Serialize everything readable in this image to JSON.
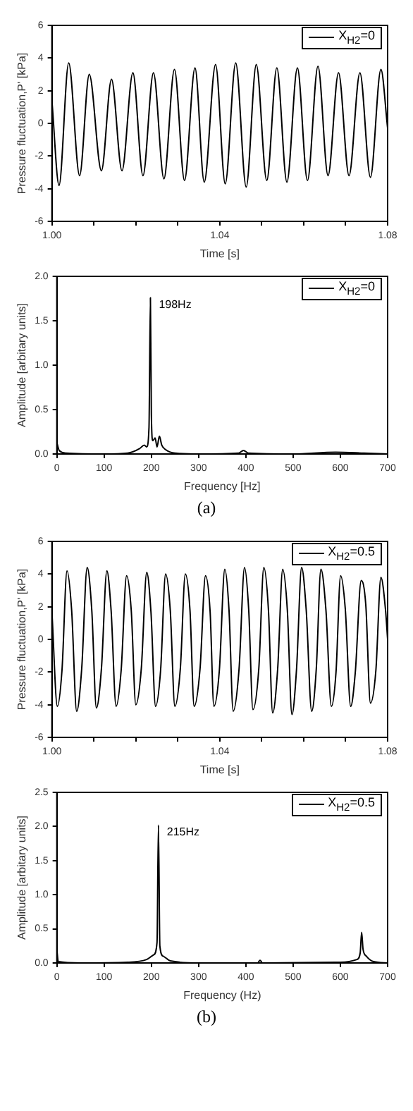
{
  "chart_data": [
    {
      "type": "line",
      "xlabel": "Time [s]",
      "ylabel": "Pressure fluctuation,P' [kPa]",
      "legend": "top right",
      "marker": "none",
      "line_style": "solid",
      "xlim": [
        1.0,
        1.08
      ],
      "xticks": [
        {
          "value": 1.0,
          "label": "1.00"
        },
        {
          "value": 1.01,
          "label": null
        },
        {
          "value": 1.02,
          "label": null
        },
        {
          "value": 1.03,
          "label": null
        },
        {
          "value": 1.04,
          "label": "1.04"
        },
        {
          "value": 1.05,
          "label": null
        },
        {
          "value": 1.06,
          "label": null
        },
        {
          "value": 1.07,
          "label": null
        },
        {
          "value": 1.08,
          "label": "1.08"
        }
      ],
      "ylim": [
        -6,
        6
      ],
      "yticks": [
        -6,
        -4,
        -2,
        0,
        2,
        4,
        6
      ],
      "x": [
        1.0,
        1.0017,
        1.004,
        1.0066,
        1.0089,
        1.0118,
        1.0142,
        1.0167,
        1.0193,
        1.0217,
        1.0242,
        1.0267,
        1.0292,
        1.0316,
        1.0341,
        1.0363,
        1.039,
        1.0413,
        1.0438,
        1.0463,
        1.0487,
        1.0512,
        1.0536,
        1.056,
        1.0585,
        1.0609,
        1.0634,
        1.0658,
        1.0683,
        1.0708,
        1.0734,
        1.0759,
        1.0784,
        1.08
      ],
      "series": [
        {
          "name": "X$_{H2}$=0",
          "color": "#000000",
          "values": [
            1.4,
            -3.8,
            3.7,
            -3.2,
            3.0,
            -2.9,
            2.7,
            -2.9,
            3.1,
            -3.2,
            3.1,
            -3.4,
            3.3,
            -3.5,
            3.4,
            -3.6,
            3.6,
            -3.7,
            3.7,
            -3.9,
            3.6,
            -3.5,
            3.4,
            -3.6,
            3.4,
            -3.5,
            3.5,
            -3.2,
            3.1,
            -3.2,
            3.1,
            -3.3,
            3.3,
            -0.3
          ]
        }
      ]
    },
    {
      "type": "line",
      "xlabel": "Frequency [Hz]",
      "ylabel": "Amplitude [arbitary units]",
      "legend": "top right",
      "marker": "none",
      "line_style": "solid",
      "xlim": [
        0,
        700
      ],
      "xticks": [
        0,
        100,
        200,
        300,
        400,
        500,
        600,
        700
      ],
      "ylim": [
        0,
        2.0
      ],
      "yticks": [
        {
          "value": 0,
          "label": "0.0"
        },
        {
          "value": 0.5,
          "label": "0.5"
        },
        {
          "value": 1.0,
          "label": "1.0"
        },
        {
          "value": 1.5,
          "label": "1.5"
        },
        {
          "value": 2.0,
          "label": "2.0"
        }
      ],
      "x": [
        0,
        5,
        20,
        100,
        150,
        175,
        185,
        190,
        195,
        198,
        200,
        203,
        208,
        212,
        217,
        222,
        230,
        250,
        300,
        385,
        395,
        405,
        500,
        590,
        650,
        700
      ],
      "series": [
        {
          "name": "X$_{H2}$=0",
          "color": "#000000",
          "values": [
            0.13,
            0.04,
            0.01,
            0.0,
            0.01,
            0.06,
            0.1,
            0.08,
            0.3,
            1.76,
            0.45,
            0.15,
            0.18,
            0.08,
            0.2,
            0.1,
            0.05,
            0.01,
            0.0,
            0.01,
            0.04,
            0.01,
            0.0,
            0.02,
            0.01,
            0.0
          ]
        }
      ],
      "annotations": [
        {
          "text": "198Hz",
          "x": 198,
          "y": 1.76
        },
        "(a)"
      ]
    },
    {
      "type": "line",
      "xlabel": "Time [s]",
      "ylabel": "Pressure fluctuation,P' [kPa]",
      "legend": "top right",
      "marker": "none",
      "line_style": "solid",
      "xlim": [
        1.0,
        1.08
      ],
      "xticks": [
        {
          "value": 1.0,
          "label": "1.00"
        },
        {
          "value": 1.01,
          "label": null
        },
        {
          "value": 1.02,
          "label": null
        },
        {
          "value": 1.03,
          "label": null
        },
        {
          "value": 1.04,
          "label": "1.04"
        },
        {
          "value": 1.05,
          "label": null
        },
        {
          "value": 1.06,
          "label": null
        },
        {
          "value": 1.07,
          "label": null
        },
        {
          "value": 1.08,
          "label": "1.08"
        }
      ],
      "ylim": [
        -6,
        6
      ],
      "yticks": [
        -6,
        -4,
        -2,
        0,
        2,
        4,
        6
      ],
      "x": [
        1.0,
        1.0013,
        1.0024,
        1.0036,
        1.0047,
        1.0059,
        1.0071,
        1.0084,
        1.0095,
        1.0106,
        1.0118,
        1.0131,
        1.0141,
        1.0153,
        1.0165,
        1.0178,
        1.0189,
        1.02,
        1.0213,
        1.0226,
        1.0236,
        1.0247,
        1.0259,
        1.0271,
        1.0282,
        1.0293,
        1.0306,
        1.0318,
        1.0329,
        1.0339,
        1.0353,
        1.0366,
        1.0377,
        1.0386,
        1.0399,
        1.0412,
        1.0422,
        1.0432,
        1.0446,
        1.0459,
        1.0469,
        1.0479,
        1.0493,
        1.0505,
        1.0516,
        1.0526,
        1.0538,
        1.055,
        1.0561,
        1.0572,
        1.0583,
        1.0595,
        1.0606,
        1.0619,
        1.063,
        1.0641,
        1.0653,
        1.0666,
        1.0677,
        1.0688,
        1.0699,
        1.0712,
        1.0723,
        1.0737,
        1.0748,
        1.0759,
        1.0772,
        1.0784,
        1.0795,
        1.08
      ],
      "series": [
        {
          "name": "X$_{H2}$=0.5",
          "color": "#000000",
          "values": [
            1.7,
            -4.1,
            -1.9,
            4.2,
            1.8,
            -4.4,
            -1.8,
            4.4,
            1.8,
            -4.2,
            -1.8,
            4.2,
            1.8,
            -4.1,
            -1.9,
            3.9,
            1.8,
            -4.0,
            -1.8,
            4.1,
            1.7,
            -4.1,
            -1.9,
            4.0,
            1.8,
            -4.1,
            -1.8,
            4.0,
            1.8,
            -4.1,
            -1.8,
            3.9,
            1.7,
            -4.1,
            -1.9,
            4.3,
            1.8,
            -4.4,
            -1.8,
            4.4,
            1.8,
            -4.3,
            -1.8,
            4.4,
            1.8,
            -4.5,
            -1.8,
            4.3,
            1.8,
            -4.6,
            -1.8,
            4.4,
            1.8,
            -4.4,
            -1.8,
            4.3,
            1.8,
            -4.1,
            -2.0,
            3.9,
            1.9,
            -4.1,
            -2.0,
            3.6,
            2.1,
            -3.9,
            -1.9,
            3.8,
            1.8,
            0.0
          ]
        }
      ]
    },
    {
      "type": "line",
      "xlabel": "Frequency (Hz)",
      "ylabel": "Amplitude [arbitary units]",
      "legend": "top right",
      "marker": "none",
      "line_style": "solid",
      "xlim": [
        0,
        700
      ],
      "xticks": [
        0,
        100,
        200,
        300,
        400,
        500,
        600,
        700
      ],
      "ylim": [
        0,
        2.5
      ],
      "yticks": [
        {
          "value": 0,
          "label": "0.0"
        },
        {
          "value": 0.5,
          "label": "0.5"
        },
        {
          "value": 1.0,
          "label": "1.0"
        },
        {
          "value": 1.5,
          "label": "1.5"
        },
        {
          "value": 2.0,
          "label": "2.0"
        },
        {
          "value": 2.5,
          "label": "2.5"
        }
      ],
      "x": [
        0,
        3,
        50,
        150,
        190,
        205,
        212,
        215,
        218,
        225,
        240,
        300,
        425,
        430,
        435,
        600,
        635,
        642,
        645,
        648,
        655,
        670,
        700
      ],
      "series": [
        {
          "name": "X$_{H2}$=0.5",
          "color": "#000000",
          "values": [
            0.2,
            0.02,
            0.0,
            0.01,
            0.05,
            0.12,
            0.3,
            2.02,
            0.25,
            0.1,
            0.03,
            0.0,
            0.0,
            0.04,
            0.0,
            0.01,
            0.05,
            0.15,
            0.45,
            0.2,
            0.1,
            0.02,
            0.0
          ]
        }
      ],
      "annotations": [
        {
          "text": "215Hz",
          "x": 215,
          "y": 2.02
        },
        "(b)"
      ]
    }
  ]
}
